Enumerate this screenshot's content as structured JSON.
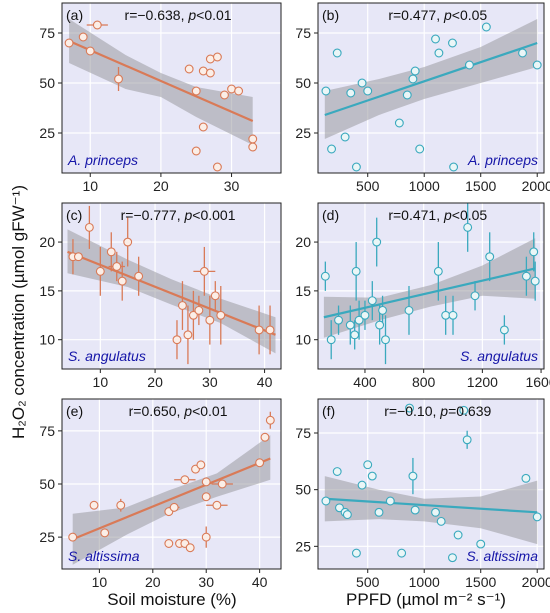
{
  "figure": {
    "ylabel": "H₂O₂ concentration (µmol gFW⁻¹)",
    "xlabel_left": "Soil moisture (%)",
    "xlabel_right": "PPFD (µmol m⁻² s⁻¹)"
  },
  "colors": {
    "background": "#e7e7f7",
    "grid": "#ffffff",
    "soil": "#d97a57",
    "soil_fill": "#fbeee7",
    "ppfd": "#3aa9be",
    "ppfd_fill": "#eaf6f7",
    "band": "#9a9aa0"
  },
  "chart_data": [
    {
      "id": "a",
      "type": "scatter",
      "tag": "(a)",
      "species": "A. princeps",
      "stat_r": "r=−0.638, ",
      "stat_p": "p",
      "stat_p_rest": "<0.01",
      "xlim": [
        6,
        37
      ],
      "ylim": [
        5,
        90
      ],
      "xticks": [
        10,
        20,
        30
      ],
      "xtick_labels": [
        "10",
        "20",
        "30"
      ],
      "yticks": [
        25,
        50,
        75
      ],
      "ytick_labels": [
        "25",
        "50",
        "75"
      ],
      "fit": {
        "x": [
          7,
          33
        ],
        "y": [
          71,
          31
        ]
      },
      "band": {
        "x": [
          7,
          15,
          20,
          25,
          33
        ],
        "upper": [
          82,
          64,
          55,
          48,
          43
        ],
        "lower": [
          60,
          47,
          43,
          33,
          19
        ]
      },
      "points": [
        [
          7,
          70,
          0,
          0
        ],
        [
          9,
          73,
          0,
          0
        ],
        [
          11,
          79,
          1.5,
          0
        ],
        [
          10,
          66,
          0,
          0
        ],
        [
          14,
          52,
          0,
          6
        ],
        [
          24,
          57,
          0,
          0
        ],
        [
          25,
          46,
          0,
          0
        ],
        [
          25,
          16,
          0,
          0
        ],
        [
          26,
          56,
          0,
          0
        ],
        [
          26,
          28,
          0,
          0
        ],
        [
          27,
          55,
          0,
          0
        ],
        [
          27,
          62,
          0,
          0
        ],
        [
          28,
          63,
          0,
          0
        ],
        [
          28,
          8,
          0,
          0
        ],
        [
          29,
          44,
          0,
          0
        ],
        [
          30,
          47,
          0,
          0
        ],
        [
          31,
          46,
          0,
          0
        ],
        [
          33,
          22,
          0,
          0
        ],
        [
          33,
          18,
          0,
          0
        ]
      ]
    },
    {
      "id": "b",
      "type": "scatter",
      "tag": "(b)",
      "species": "A. princeps",
      "stat_r": "r=0.477, ",
      "stat_p": "p",
      "stat_p_rest": "<0.05",
      "xlim": [
        60,
        2060
      ],
      "ylim": [
        5,
        90
      ],
      "xticks": [
        500,
        1000,
        1500,
        2000
      ],
      "xtick_labels": [
        "500",
        "1000",
        "1500",
        "2000"
      ],
      "yticks": [
        25,
        50,
        75
      ],
      "ytick_labels": [
        "25",
        "50",
        "75"
      ],
      "fit": {
        "x": [
          120,
          2000
        ],
        "y": [
          34,
          70
        ]
      },
      "band": {
        "x": [
          120,
          600,
          1000,
          1500,
          2000
        ],
        "upper": [
          46,
          52,
          58,
          68,
          82
        ],
        "lower": [
          22,
          34,
          42,
          50,
          58
        ]
      },
      "points": [
        [
          130,
          46,
          0,
          0
        ],
        [
          180,
          17,
          0,
          0
        ],
        [
          230,
          65,
          0,
          0
        ],
        [
          300,
          23,
          0,
          0
        ],
        [
          350,
          45,
          0,
          0
        ],
        [
          400,
          8,
          0,
          0
        ],
        [
          450,
          50,
          0,
          0
        ],
        [
          500,
          46,
          0,
          0
        ],
        [
          780,
          30,
          0,
          0
        ],
        [
          850,
          44,
          0,
          0
        ],
        [
          900,
          52,
          0,
          0
        ],
        [
          920,
          56,
          0,
          0
        ],
        [
          960,
          17,
          0,
          0
        ],
        [
          1100,
          72,
          0,
          0
        ],
        [
          1130,
          65,
          0,
          0
        ],
        [
          1250,
          70,
          0,
          0
        ],
        [
          1260,
          8,
          0,
          0
        ],
        [
          1400,
          59,
          0,
          0
        ],
        [
          1550,
          78,
          0,
          0
        ],
        [
          1870,
          65,
          0,
          0
        ],
        [
          2000,
          59,
          0,
          0
        ]
      ]
    },
    {
      "id": "c",
      "type": "scatter",
      "tag": "(c)",
      "species": "S. angulatus",
      "stat_r": "r=−0.777, ",
      "stat_p": "p",
      "stat_p_rest": "<0.001",
      "xlim": [
        3,
        43
      ],
      "ylim": [
        7,
        24
      ],
      "xticks": [
        10,
        20,
        30,
        40
      ],
      "xtick_labels": [
        "10",
        "20",
        "30",
        "40"
      ],
      "yticks": [
        10,
        15,
        20
      ],
      "ytick_labels": [
        "10",
        "15",
        "20"
      ],
      "fit": {
        "x": [
          4,
          42
        ],
        "y": [
          19,
          10.5
        ]
      },
      "band": {
        "x": [
          4,
          15,
          23,
          32,
          42
        ],
        "upper": [
          21.3,
          18.2,
          16.2,
          14.2,
          12.3
        ],
        "lower": [
          16.8,
          15.4,
          13.6,
          11.7,
          8.6
        ]
      },
      "points": [
        [
          5,
          18.5,
          0,
          1.8
        ],
        [
          6,
          18.5,
          0,
          0
        ],
        [
          8,
          21.5,
          0,
          2.2
        ],
        [
          10,
          17,
          0,
          2.5
        ],
        [
          12,
          19,
          0,
          2
        ],
        [
          13,
          17.5,
          1.5,
          1.5
        ],
        [
          14,
          16,
          0,
          2
        ],
        [
          15,
          20,
          0,
          2.5
        ],
        [
          17,
          16.5,
          0,
          2
        ],
        [
          24,
          10,
          0,
          2
        ],
        [
          25,
          13.5,
          0,
          2.5
        ],
        [
          26,
          10.5,
          0,
          3
        ],
        [
          27,
          12.5,
          0,
          2.5
        ],
        [
          28,
          13,
          0,
          1.5
        ],
        [
          29,
          17,
          2,
          2.5
        ],
        [
          30,
          12,
          0,
          2.5
        ],
        [
          31,
          14.5,
          0,
          1.5
        ],
        [
          32,
          12.5,
          0,
          3
        ],
        [
          39,
          11,
          0,
          2.5
        ],
        [
          41,
          11,
          0,
          2.5
        ]
      ]
    },
    {
      "id": "d",
      "type": "scatter",
      "tag": "(d)",
      "species": "S. angulatus",
      "stat_r": "r=0.471, ",
      "stat_p": "p",
      "stat_p_rest": "<0.05",
      "xlim": [
        80,
        1620
      ],
      "ylim": [
        7,
        24
      ],
      "xticks": [
        400,
        800,
        1200,
        1600
      ],
      "xtick_labels": [
        "400",
        "800",
        "1200",
        "1600"
      ],
      "yticks": [
        10,
        15,
        20
      ],
      "ytick_labels": [
        "10",
        "15",
        "20"
      ],
      "fit": {
        "x": [
          120,
          1560
        ],
        "y": [
          12.3,
          17.3
        ]
      },
      "band": {
        "x": [
          120,
          500,
          850,
          1200,
          1560
        ],
        "upper": [
          14.4,
          14.3,
          15.6,
          17.6,
          20.4
        ],
        "lower": [
          10.2,
          12.0,
          13.4,
          14.5,
          14.2
        ]
      },
      "points": [
        [
          130,
          16.5,
          0,
          1.5
        ],
        [
          170,
          10,
          0,
          2
        ],
        [
          220,
          12,
          0,
          1.5
        ],
        [
          300,
          11.5,
          0,
          2
        ],
        [
          330,
          10.5,
          0,
          1.5
        ],
        [
          340,
          17,
          0,
          3
        ],
        [
          360,
          12,
          0,
          2
        ],
        [
          400,
          12.5,
          0,
          1.5
        ],
        [
          450,
          14,
          0,
          2
        ],
        [
          480,
          20,
          0,
          2.5
        ],
        [
          500,
          11.5,
          0,
          2
        ],
        [
          520,
          13,
          0,
          1.5
        ],
        [
          540,
          10,
          0,
          2.5
        ],
        [
          700,
          13,
          0,
          2.5
        ],
        [
          900,
          17,
          0,
          3
        ],
        [
          950,
          12.5,
          0,
          2
        ],
        [
          1000,
          12.5,
          0,
          2
        ],
        [
          1100,
          21.5,
          0,
          2.5
        ],
        [
          1150,
          14.5,
          0,
          1.5
        ],
        [
          1250,
          18.5,
          0,
          2.5
        ],
        [
          1350,
          11,
          0,
          1.5
        ],
        [
          1500,
          16.5,
          0,
          2
        ],
        [
          1550,
          19,
          0,
          2
        ],
        [
          1560,
          16,
          0,
          2
        ]
      ]
    },
    {
      "id": "e",
      "type": "scatter",
      "tag": "(e)",
      "species": "S. altissima",
      "stat_r": "r=0.650, ",
      "stat_p": "p",
      "stat_p_rest": "<0.01",
      "xlim": [
        3,
        44
      ],
      "ylim": [
        10,
        90
      ],
      "xticks": [
        10,
        20,
        30,
        40
      ],
      "xtick_labels": [
        "10",
        "20",
        "30",
        "40"
      ],
      "yticks": [
        25,
        50,
        75
      ],
      "ytick_labels": [
        "25",
        "50",
        "75"
      ],
      "fit": {
        "x": [
          5,
          42
        ],
        "y": [
          24,
          62
        ]
      },
      "band": {
        "x": [
          5,
          15,
          23,
          32,
          42
        ],
        "upper": [
          36,
          39,
          47,
          55,
          73
        ],
        "lower": [
          12,
          26,
          36,
          44,
          52
        ]
      },
      "points": [
        [
          5,
          25,
          0,
          0
        ],
        [
          9,
          40,
          0,
          0
        ],
        [
          11,
          27,
          0,
          0
        ],
        [
          14,
          40,
          0,
          3
        ],
        [
          23,
          22,
          0,
          0
        ],
        [
          23,
          37,
          0,
          0
        ],
        [
          24,
          39,
          1,
          0
        ],
        [
          25,
          22,
          0,
          0
        ],
        [
          26,
          52,
          2,
          0
        ],
        [
          26,
          22,
          0,
          0
        ],
        [
          27,
          20,
          0,
          0
        ],
        [
          28,
          57,
          0,
          0
        ],
        [
          29,
          59,
          0,
          0
        ],
        [
          30,
          51,
          0,
          0
        ],
        [
          30,
          44,
          0,
          0
        ],
        [
          30,
          25,
          0,
          5
        ],
        [
          32,
          40,
          2,
          0
        ],
        [
          33,
          50,
          2,
          0
        ],
        [
          40,
          60,
          0,
          0
        ],
        [
          41,
          72,
          0,
          0
        ],
        [
          42,
          80,
          0,
          4
        ]
      ]
    },
    {
      "id": "f",
      "type": "scatter",
      "tag": "(f)",
      "species": "S. altissima",
      "stat_r": "r=−0.10, ",
      "stat_p": "p",
      "stat_p_rest": "=0.639",
      "xlim": [
        60,
        2060
      ],
      "ylim": [
        15,
        90
      ],
      "xticks": [
        500,
        1000,
        1500,
        2000
      ],
      "xtick_labels": [
        "500",
        "1000",
        "1500",
        "2000"
      ],
      "yticks": [
        25,
        50,
        75
      ],
      "ytick_labels": [
        "25",
        "50",
        "75"
      ],
      "fit": {
        "x": [
          120,
          2000
        ],
        "y": [
          46,
          40
        ]
      },
      "band": {
        "x": [
          120,
          600,
          1000,
          1500,
          2000
        ],
        "upper": [
          56,
          50,
          46,
          47,
          54
        ],
        "lower": [
          36,
          37,
          36,
          33,
          26
        ]
      },
      "points": [
        [
          130,
          45,
          0,
          0
        ],
        [
          230,
          58,
          0,
          0
        ],
        [
          250,
          42,
          0,
          0
        ],
        [
          300,
          40,
          0,
          0
        ],
        [
          320,
          39,
          0,
          0
        ],
        [
          400,
          22,
          0,
          0
        ],
        [
          450,
          52,
          0,
          0
        ],
        [
          500,
          61,
          0,
          0
        ],
        [
          540,
          56,
          0,
          0
        ],
        [
          600,
          40,
          0,
          0
        ],
        [
          700,
          45,
          0,
          0
        ],
        [
          800,
          22,
          0,
          0
        ],
        [
          870,
          86,
          0,
          0
        ],
        [
          900,
          56,
          0,
          8
        ],
        [
          920,
          41,
          0,
          0
        ],
        [
          1100,
          40,
          0,
          0
        ],
        [
          1150,
          36,
          0,
          0
        ],
        [
          1250,
          20,
          0,
          0
        ],
        [
          1300,
          30,
          0,
          0
        ],
        [
          1350,
          85,
          0,
          0
        ],
        [
          1380,
          72,
          0,
          4
        ],
        [
          1500,
          26,
          0,
          0
        ],
        [
          1900,
          55,
          0,
          0
        ],
        [
          2000,
          38,
          0,
          0
        ]
      ]
    }
  ]
}
